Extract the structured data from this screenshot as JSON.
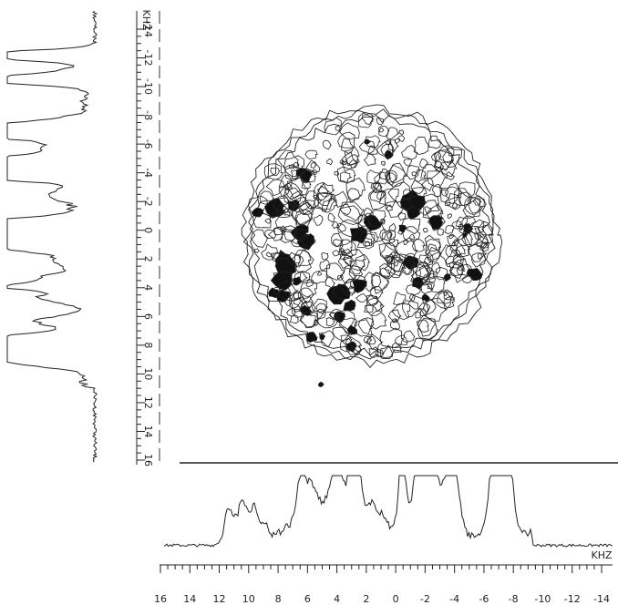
{
  "figure": {
    "x_axis": {
      "unit": "KHZ",
      "ticks": [
        16,
        14,
        12,
        10,
        8,
        6,
        4,
        2,
        0,
        -2,
        -4,
        -6,
        -8,
        -10,
        -12,
        -14
      ]
    },
    "y_axis": {
      "unit": "KHZ",
      "ticks": [
        16,
        14,
        12,
        10,
        8,
        6,
        4,
        2,
        0,
        -2,
        -4,
        -6,
        -8,
        -10,
        -12,
        -14
      ]
    }
  }
}
